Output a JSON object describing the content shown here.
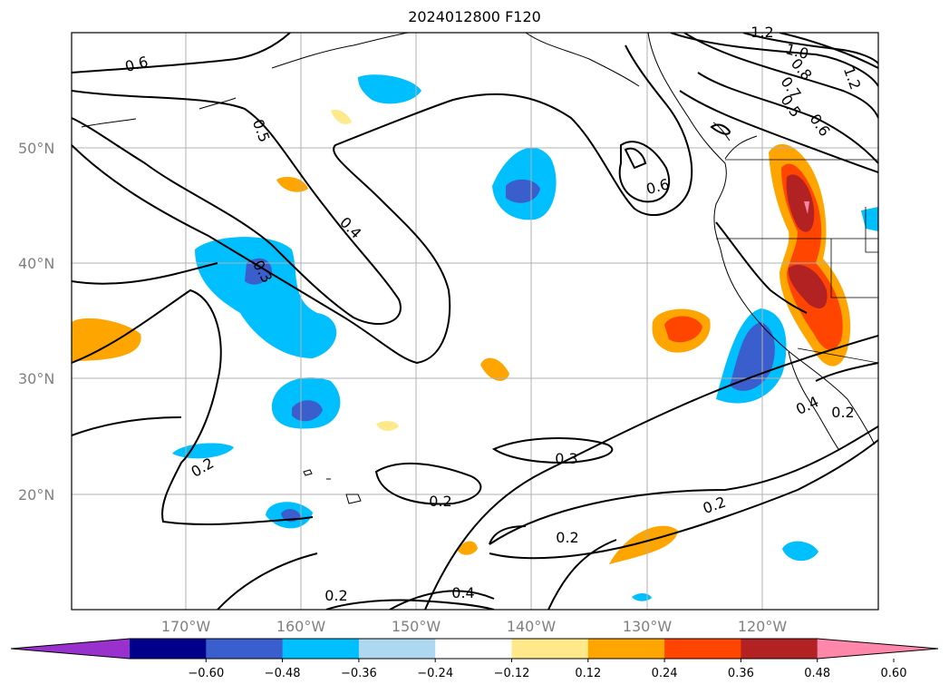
{
  "title": "2024012800 F120",
  "lat_labels": [
    "50°N",
    "40°N",
    "30°N",
    "20°N"
  ],
  "lon_labels": [
    "170°W",
    "160°W",
    "150°W",
    "140°W",
    "130°W",
    "120°W"
  ],
  "colorbar": {
    "ticks": [
      "−0.60",
      "−0.48",
      "−0.36",
      "−0.24",
      "−0.12",
      "0.12",
      "0.24",
      "0.36",
      "0.48",
      "0.60"
    ],
    "colors": [
      "#9932cc",
      "#00008b",
      "#3a5fcd",
      "#00bfff",
      "#add8f0",
      "#ffffff",
      "#ffe98a",
      "#ffa500",
      "#ff4500",
      "#b22222",
      "#ff88aa"
    ]
  },
  "contour_labels": [
    "0.6",
    "0.5",
    "0.4",
    "0.3",
    "0.6",
    "1.2",
    "1.0",
    "0.8",
    "0.7",
    "0.5",
    "0.6",
    "1.2",
    "0.2",
    "0.3",
    "0.2",
    "0.2",
    "0.4",
    "0.2",
    "0.4",
    "0.2",
    "0.2"
  ],
  "colors": {
    "grid": "#b0b0b0",
    "contour": "#000000",
    "coast": "#000000"
  }
}
